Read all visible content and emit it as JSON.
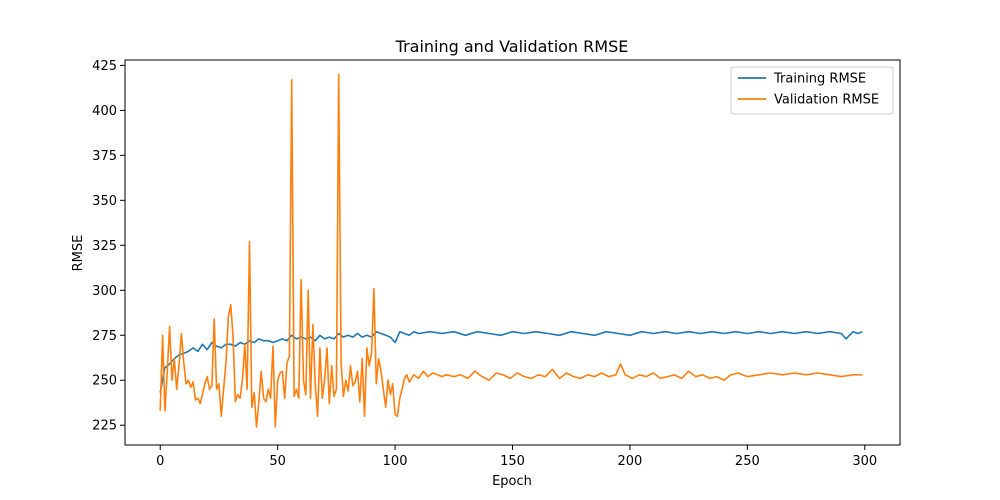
{
  "chart_data": {
    "type": "line",
    "title": "Training and Validation RMSE",
    "xlabel": "Epoch",
    "ylabel": "RMSE",
    "xlim": [
      -15,
      315
    ],
    "ylim": [
      214,
      428
    ],
    "xticks": [
      0,
      50,
      100,
      150,
      200,
      250,
      300
    ],
    "yticks": [
      225,
      250,
      275,
      300,
      325,
      350,
      375,
      400,
      425
    ],
    "grid": false,
    "legend_position": "top-right",
    "series": [
      {
        "name": "Training RMSE",
        "color": "#1f77b4",
        "x": [
          0,
          2,
          4,
          6,
          8,
          10,
          12,
          14,
          16,
          18,
          20,
          22,
          24,
          26,
          28,
          30,
          32,
          34,
          36,
          38,
          40,
          42,
          44,
          46,
          48,
          50,
          52,
          54,
          56,
          58,
          60,
          62,
          64,
          66,
          68,
          70,
          72,
          74,
          76,
          78,
          80,
          82,
          84,
          86,
          88,
          90,
          92,
          94,
          96,
          98,
          100,
          102,
          104,
          106,
          108,
          110,
          115,
          120,
          125,
          130,
          135,
          140,
          145,
          150,
          155,
          160,
          165,
          170,
          175,
          180,
          185,
          190,
          195,
          200,
          205,
          210,
          215,
          220,
          225,
          230,
          235,
          240,
          245,
          250,
          255,
          260,
          265,
          270,
          275,
          280,
          285,
          290,
          292,
          295,
          297,
          299
        ],
        "y": [
          243,
          257,
          259,
          262,
          264,
          265,
          266,
          268,
          266,
          270,
          267,
          271,
          269,
          268,
          270,
          270,
          269,
          271,
          270,
          272,
          271,
          273,
          272,
          272,
          271,
          272,
          273,
          272,
          275,
          273,
          274,
          273,
          274,
          272,
          275,
          273,
          274,
          273,
          276,
          274,
          275,
          274,
          276,
          274,
          275,
          274,
          277,
          276,
          275,
          274,
          271,
          277,
          276,
          275,
          277,
          276,
          277,
          276,
          277,
          275,
          277,
          276,
          275,
          277,
          276,
          277,
          276,
          275,
          277,
          276,
          275,
          277,
          276,
          275,
          277,
          276,
          277,
          276,
          277,
          276,
          277,
          276,
          277,
          276,
          277,
          276,
          277,
          276,
          277,
          276,
          277,
          276,
          273,
          277,
          276,
          277
        ]
      },
      {
        "name": "Validation RMSE",
        "color": "#ff7f0e",
        "x": [
          0,
          1,
          2,
          3,
          4,
          5,
          6,
          7,
          8,
          9,
          10,
          11,
          12,
          13,
          14,
          15,
          16,
          17,
          18,
          19,
          20,
          21,
          22,
          23,
          24,
          25,
          26,
          27,
          28,
          29,
          30,
          31,
          32,
          33,
          34,
          35,
          36,
          37,
          38,
          39,
          40,
          41,
          42,
          43,
          44,
          45,
          46,
          47,
          48,
          49,
          50,
          51,
          52,
          53,
          54,
          55,
          56,
          57,
          58,
          59,
          60,
          61,
          62,
          63,
          64,
          65,
          66,
          67,
          68,
          69,
          70,
          71,
          72,
          73,
          74,
          75,
          76,
          77,
          78,
          79,
          80,
          81,
          82,
          83,
          84,
          85,
          86,
          87,
          88,
          89,
          90,
          91,
          92,
          93,
          94,
          95,
          96,
          97,
          98,
          99,
          100,
          101,
          102,
          103,
          104,
          105,
          106,
          108,
          110,
          112,
          114,
          116,
          118,
          120,
          122,
          125,
          128,
          131,
          134,
          137,
          140,
          143,
          146,
          149,
          152,
          155,
          158,
          161,
          164,
          167,
          170,
          173,
          176,
          179,
          182,
          185,
          188,
          191,
          194,
          196,
          198,
          201,
          204,
          207,
          210,
          213,
          216,
          219,
          222,
          225,
          228,
          231,
          234,
          237,
          240,
          243,
          246,
          250,
          255,
          260,
          265,
          270,
          275,
          280,
          285,
          290,
          295,
          299
        ],
        "y": [
          233,
          275,
          233,
          255,
          280,
          250,
          262,
          245,
          258,
          276,
          260,
          248,
          250,
          246,
          249,
          239,
          240,
          237,
          242,
          248,
          252,
          245,
          247,
          284,
          245,
          248,
          230,
          245,
          260,
          285,
          292,
          275,
          238,
          242,
          240,
          250,
          270,
          245,
          327,
          235,
          243,
          224,
          238,
          255,
          240,
          238,
          245,
          240,
          269,
          224,
          250,
          254,
          255,
          240,
          260,
          263,
          417,
          241,
          245,
          240,
          306,
          250,
          242,
          300,
          240,
          281,
          248,
          230,
          268,
          240,
          250,
          268,
          237,
          258,
          241,
          245,
          420,
          260,
          241,
          250,
          244,
          258,
          247,
          249,
          255,
          238,
          262,
          230,
          268,
          258,
          265,
          301,
          248,
          262,
          255,
          245,
          235,
          250,
          242,
          248,
          231,
          230,
          240,
          245,
          251,
          253,
          249,
          253,
          251,
          255,
          252,
          254,
          253,
          252,
          253,
          252,
          253,
          251,
          255,
          252,
          250,
          254,
          253,
          251,
          254,
          252,
          251,
          253,
          252,
          256,
          251,
          254,
          252,
          251,
          253,
          252,
          254,
          252,
          253,
          259,
          253,
          251,
          253,
          252,
          254,
          251,
          252,
          253,
          251,
          255,
          252,
          253,
          251,
          252,
          250,
          253,
          254,
          252,
          253,
          254,
          253,
          254,
          253,
          254,
          253,
          252,
          253,
          253
        ]
      }
    ]
  }
}
